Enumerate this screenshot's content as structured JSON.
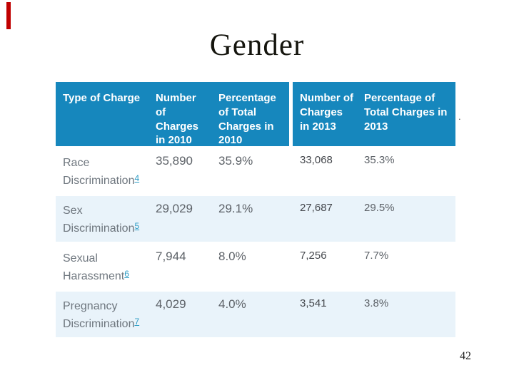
{
  "slide": {
    "title": "Gender",
    "page_number": "42",
    "stray_mark": ".",
    "accent_color": "#c00000"
  },
  "table": {
    "header_bg": "#1687bd",
    "alt_row_bg": "#e9f3fa",
    "columns": [
      {
        "label": "Type of Charge"
      },
      {
        "label": "Number of Charges in 2010"
      },
      {
        "label": "Percentage of Total Charges in 2010"
      },
      {
        "label": "Number of Charges in 2013"
      },
      {
        "label": "Percentage of Total Charges in 2013"
      }
    ],
    "rows": [
      {
        "type": "Race Discrimination",
        "footnote": "4",
        "num_2010": "35,890",
        "pct_2010": "35.9%",
        "num_2013": "33,068",
        "pct_2013": "35.3%"
      },
      {
        "type": "Sex Discrimination",
        "footnote": "5",
        "num_2010": "29,029",
        "pct_2010": "29.1%",
        "num_2013": "27,687",
        "pct_2013": "29.5%"
      },
      {
        "type": "Sexual Harassment",
        "footnote": "6",
        "num_2010": "7,944",
        "pct_2010": "8.0%",
        "num_2013": "7,256",
        "pct_2013": "7.7%"
      },
      {
        "type": "Pregnancy Discrimination",
        "footnote": "7",
        "num_2010": "4,029",
        "pct_2010": "4.0%",
        "num_2013": "3,541",
        "pct_2013": "3.8%"
      }
    ]
  }
}
